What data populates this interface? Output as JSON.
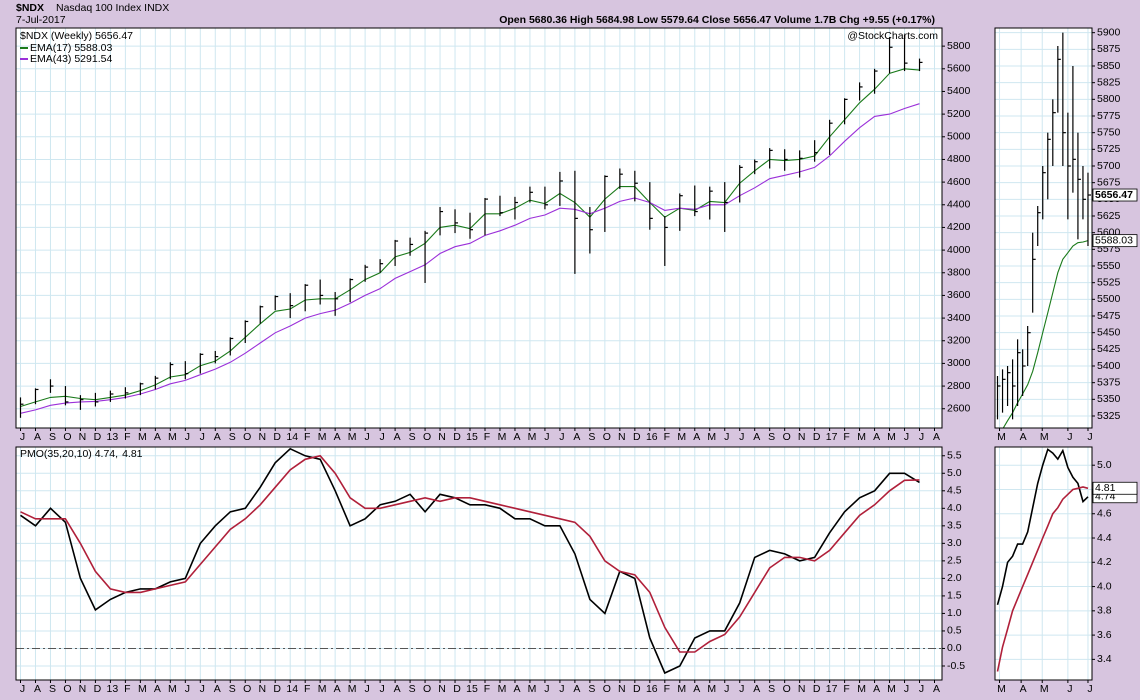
{
  "header": {
    "symbol": "$NDX",
    "name": "Nasdaq 100 Index INDX",
    "date": "7-Jul-2017",
    "quote": "Open 5680.36 High 5684.98 Low 5579.64 Close 5656.47 Volume 1.7B Chg +9.55 (+0.17%)",
    "credit": "@StockCharts.com"
  },
  "chart_data": [
    {
      "type": "ohlc",
      "legend": "$NDX (Weekly) 5656.47",
      "color": "#000000",
      "grid": true,
      "x": [
        0,
        1,
        2,
        3,
        4,
        5,
        6,
        7,
        8,
        9,
        10,
        11,
        12,
        13,
        14,
        15,
        16,
        17,
        18,
        19,
        20,
        21,
        22,
        23,
        24,
        25,
        26,
        27,
        28,
        29,
        30,
        31,
        32,
        33,
        34,
        35,
        36,
        37,
        38,
        39,
        40,
        41,
        42,
        43,
        44,
        45,
        46,
        47,
        48,
        49,
        50,
        51,
        52,
        53,
        54,
        55,
        56,
        57,
        58,
        59,
        60
      ],
      "high": [
        2700,
        2780,
        2860,
        2800,
        2720,
        2740,
        2760,
        2790,
        2830,
        2890,
        3010,
        3020,
        3090,
        3110,
        3230,
        3380,
        3510,
        3600,
        3620,
        3700,
        3740,
        3630,
        3750,
        3870,
        3920,
        4090,
        4110,
        4170,
        4380,
        4360,
        4330,
        4460,
        4480,
        4470,
        4560,
        4560,
        4690,
        4700,
        4380,
        4660,
        4720,
        4700,
        4600,
        4300,
        4500,
        4570,
        4560,
        4600,
        4750,
        4800,
        4900,
        4890,
        4880,
        4970,
        5150,
        5340,
        5480,
        5600,
        5880,
        5900,
        5690
      ],
      "low": [
        2520,
        2640,
        2740,
        2630,
        2590,
        2620,
        2660,
        2690,
        2720,
        2770,
        2860,
        2860,
        2910,
        3000,
        3070,
        3180,
        3350,
        3470,
        3400,
        3460,
        3520,
        3420,
        3540,
        3720,
        3800,
        3860,
        3950,
        3710,
        4130,
        4150,
        4100,
        4130,
        4300,
        4270,
        4420,
        4360,
        4390,
        3790,
        3970,
        4160,
        4540,
        4430,
        4180,
        3860,
        4170,
        4300,
        4270,
        4160,
        4420,
        4670,
        4720,
        4700,
        4640,
        4780,
        4840,
        5110,
        5320,
        5380,
        5560,
        5580,
        5580
      ],
      "close": [
        2640,
        2770,
        2800,
        2660,
        2680,
        2660,
        2730,
        2740,
        2820,
        2870,
        2990,
        2910,
        3080,
        3060,
        3220,
        3370,
        3500,
        3590,
        3510,
        3690,
        3600,
        3570,
        3740,
        3850,
        3880,
        4080,
        4050,
        4150,
        4340,
        4240,
        4180,
        4450,
        4330,
        4420,
        4510,
        4400,
        4610,
        4280,
        4180,
        4650,
        4670,
        4590,
        4280,
        4200,
        4480,
        4340,
        4520,
        4420,
        4730,
        4780,
        4880,
        4800,
        4810,
        4860,
        5120,
        5330,
        5440,
        5580,
        5790,
        5650,
        5656.47
      ],
      "series": [
        {
          "name": "EMA(17) 5588.03",
          "color": "#1a7a1a",
          "values": [
            2620,
            2660,
            2700,
            2710,
            2690,
            2680,
            2700,
            2720,
            2760,
            2810,
            2880,
            2900,
            2980,
            3020,
            3110,
            3230,
            3350,
            3460,
            3480,
            3560,
            3570,
            3570,
            3650,
            3740,
            3800,
            3940,
            3980,
            4060,
            4200,
            4220,
            4190,
            4320,
            4320,
            4370,
            4440,
            4410,
            4500,
            4420,
            4290,
            4450,
            4560,
            4560,
            4420,
            4290,
            4370,
            4350,
            4430,
            4420,
            4590,
            4700,
            4800,
            4790,
            4800,
            4830,
            5000,
            5150,
            5300,
            5420,
            5560,
            5600,
            5588.03
          ]
        },
        {
          "name": "EMA(43) 5291.54",
          "color": "#9b30d9",
          "values": [
            2560,
            2590,
            2630,
            2650,
            2660,
            2665,
            2680,
            2700,
            2730,
            2770,
            2820,
            2850,
            2900,
            2950,
            3010,
            3090,
            3180,
            3270,
            3330,
            3400,
            3440,
            3470,
            3530,
            3600,
            3660,
            3750,
            3810,
            3870,
            3970,
            4030,
            4060,
            4130,
            4170,
            4220,
            4280,
            4310,
            4370,
            4360,
            4320,
            4370,
            4430,
            4460,
            4420,
            4350,
            4370,
            4360,
            4400,
            4400,
            4480,
            4550,
            4630,
            4660,
            4690,
            4730,
            4830,
            4960,
            5080,
            5180,
            5200,
            5250,
            5291.54
          ]
        }
      ],
      "xlim": [
        -0.3,
        61.5
      ],
      "xticks": [
        {
          "value": 0,
          "label": "J"
        },
        {
          "value": 1,
          "label": "A"
        },
        {
          "value": 2,
          "label": "S"
        },
        {
          "value": 3,
          "label": "O"
        },
        {
          "value": 4,
          "label": "N"
        },
        {
          "value": 5,
          "label": "D"
        },
        {
          "value": 6,
          "label": "13"
        },
        {
          "value": 7,
          "label": "F"
        },
        {
          "value": 8,
          "label": "M"
        },
        {
          "value": 9,
          "label": "A"
        },
        {
          "value": 10,
          "label": "M"
        },
        {
          "value": 11,
          "label": "J"
        },
        {
          "value": 12,
          "label": "J"
        },
        {
          "value": 13,
          "label": "A"
        },
        {
          "value": 14,
          "label": "S"
        },
        {
          "value": 15,
          "label": "O"
        },
        {
          "value": 16,
          "label": "N"
        },
        {
          "value": 17,
          "label": "D"
        },
        {
          "value": 18,
          "label": "14"
        },
        {
          "value": 19,
          "label": "F"
        },
        {
          "value": 20,
          "label": "M"
        },
        {
          "value": 21,
          "label": "A"
        },
        {
          "value": 22,
          "label": "M"
        },
        {
          "value": 23,
          "label": "J"
        },
        {
          "value": 24,
          "label": "J"
        },
        {
          "value": 25,
          "label": "A"
        },
        {
          "value": 26,
          "label": "S"
        },
        {
          "value": 27,
          "label": "O"
        },
        {
          "value": 28,
          "label": "N"
        },
        {
          "value": 29,
          "label": "D"
        },
        {
          "value": 30,
          "label": "15"
        },
        {
          "value": 31,
          "label": "F"
        },
        {
          "value": 32,
          "label": "M"
        },
        {
          "value": 33,
          "label": "A"
        },
        {
          "value": 34,
          "label": "M"
        },
        {
          "value": 35,
          "label": "J"
        },
        {
          "value": 36,
          "label": "J"
        },
        {
          "value": 37,
          "label": "A"
        },
        {
          "value": 38,
          "label": "S"
        },
        {
          "value": 39,
          "label": "O"
        },
        {
          "value": 40,
          "label": "N"
        },
        {
          "value": 41,
          "label": "D"
        },
        {
          "value": 42,
          "label": "16"
        },
        {
          "value": 43,
          "label": "F"
        },
        {
          "value": 44,
          "label": "M"
        },
        {
          "value": 45,
          "label": "A"
        },
        {
          "value": 46,
          "label": "M"
        },
        {
          "value": 47,
          "label": "J"
        },
        {
          "value": 48,
          "label": "J"
        },
        {
          "value": 49,
          "label": "A"
        },
        {
          "value": 50,
          "label": "S"
        },
        {
          "value": 51,
          "label": "O"
        },
        {
          "value": 52,
          "label": "N"
        },
        {
          "value": 53,
          "label": "D"
        },
        {
          "value": 54,
          "label": "17"
        },
        {
          "value": 55,
          "label": "F"
        },
        {
          "value": 56,
          "label": "M"
        },
        {
          "value": 57,
          "label": "A"
        },
        {
          "value": 58,
          "label": "M"
        },
        {
          "value": 59,
          "label": "J"
        },
        {
          "value": 60,
          "label": "J"
        },
        {
          "value": 61,
          "label": "A"
        }
      ],
      "ylim": [
        2430,
        5960
      ],
      "yticks": [
        2600,
        2800,
        3000,
        3200,
        3400,
        3600,
        3800,
        4000,
        4200,
        4400,
        4600,
        4800,
        5000,
        5200,
        5400,
        5600,
        5800
      ]
    },
    {
      "type": "line",
      "grid": true,
      "zero_line": true,
      "series": [
        {
          "name": "PMO(35,20,10) 4.74,",
          "color": "#000000",
          "values": [
            3.8,
            3.5,
            4.0,
            3.6,
            2.0,
            1.1,
            1.4,
            1.6,
            1.7,
            1.7,
            1.9,
            2.0,
            3.0,
            3.5,
            3.9,
            4.0,
            4.6,
            5.3,
            5.7,
            5.5,
            5.4,
            4.5,
            3.5,
            3.7,
            4.1,
            4.2,
            4.4,
            3.9,
            4.4,
            4.3,
            4.1,
            4.1,
            4.0,
            3.7,
            3.7,
            3.5,
            3.5,
            2.7,
            1.4,
            1.0,
            2.2,
            2.0,
            0.3,
            -0.7,
            -0.5,
            0.3,
            0.5,
            0.5,
            1.3,
            2.6,
            2.8,
            2.7,
            2.5,
            2.6,
            3.3,
            3.9,
            4.3,
            4.5,
            5.0,
            5.0,
            4.74
          ]
        },
        {
          "name": "4.81",
          "color": "#b0203a",
          "values": [
            3.9,
            3.7,
            3.7,
            3.7,
            3.0,
            2.2,
            1.7,
            1.6,
            1.6,
            1.7,
            1.8,
            1.9,
            2.4,
            2.9,
            3.4,
            3.7,
            4.1,
            4.6,
            5.1,
            5.4,
            5.5,
            5.0,
            4.3,
            4.0,
            4.0,
            4.1,
            4.2,
            4.3,
            4.2,
            4.3,
            4.3,
            4.2,
            4.1,
            4.0,
            3.9,
            3.8,
            3.7,
            3.6,
            3.2,
            2.5,
            2.2,
            2.1,
            1.6,
            0.6,
            -0.1,
            -0.1,
            0.2,
            0.4,
            0.9,
            1.6,
            2.3,
            2.6,
            2.6,
            2.5,
            2.8,
            3.3,
            3.8,
            4.1,
            4.5,
            4.8,
            4.81
          ]
        }
      ],
      "ylim": [
        -0.9,
        5.75
      ],
      "yticks": [
        5.5,
        {
          "value": 5,
          "label": "5.0"
        },
        4.5,
        {
          "value": 4,
          "label": "4.0"
        },
        3.5,
        {
          "value": 3,
          "label": "3.0"
        },
        2.5,
        {
          "value": 2,
          "label": "2.0"
        },
        1.5,
        {
          "value": 1,
          "label": "1.0"
        },
        0.5,
        {
          "value": 0,
          "label": "0.0"
        },
        -0.5
      ]
    },
    {
      "type": "ohlc",
      "color": "#000000",
      "grid": true,
      "x": [
        0,
        1,
        2,
        3,
        4,
        5,
        6,
        7,
        8,
        9,
        10,
        11,
        12,
        13,
        14,
        15,
        16,
        17,
        18
      ],
      "high": [
        5385,
        5395,
        5400,
        5410,
        5440,
        5425,
        5460,
        5600,
        5640,
        5700,
        5750,
        5800,
        5880,
        5900,
        5780,
        5850,
        5750,
        5700,
        5690
      ],
      "low": [
        5320,
        5330,
        5340,
        5320,
        5340,
        5355,
        5400,
        5480,
        5580,
        5620,
        5650,
        5700,
        5780,
        5700,
        5620,
        5660,
        5590,
        5620,
        5580
      ],
      "close": [
        5370,
        5380,
        5390,
        5370,
        5420,
        5400,
        5450,
        5560,
        5630,
        5690,
        5740,
        5780,
        5860,
        5750,
        5700,
        5710,
        5680,
        5650,
        5656.47
      ],
      "series": [
        {
          "color": "#1a7a1a",
          "values": [
            5290,
            5305,
            5318,
            5330,
            5345,
            5358,
            5372,
            5392,
            5420,
            5450,
            5480,
            5510,
            5540,
            5560,
            5570,
            5580,
            5585,
            5586,
            5588.03
          ]
        }
      ],
      "xlim": [
        -0.5,
        18.8
      ],
      "xticks": [
        {
          "value": 0.4,
          "label": "M"
        },
        {
          "value": 4.7,
          "label": "A"
        },
        {
          "value": 8.9,
          "label": "M"
        },
        {
          "value": 14,
          "label": "J"
        },
        {
          "value": 18,
          "label": "J"
        }
      ],
      "ylim": [
        5307,
        5907
      ],
      "yticks": [
        5325,
        5350,
        5375,
        5400,
        5425,
        5450,
        5475,
        5500,
        5525,
        5550,
        5575,
        5600,
        5625,
        5650,
        5675,
        5700,
        5725,
        5750,
        5775,
        5800,
        5825,
        5850,
        5875,
        5900
      ]
    },
    {
      "type": "line",
      "grid": true,
      "series": [
        {
          "color": "#000000",
          "values": [
            3.85,
            4.0,
            4.2,
            4.25,
            4.35,
            4.35,
            4.45,
            4.65,
            4.85,
            5.0,
            5.13,
            5.1,
            5.05,
            5.12,
            4.98,
            4.9,
            4.85,
            4.7,
            4.74
          ]
        },
        {
          "color": "#b0203a",
          "values": [
            3.3,
            3.5,
            3.65,
            3.8,
            3.9,
            4.0,
            4.1,
            4.2,
            4.3,
            4.4,
            4.5,
            4.6,
            4.65,
            4.72,
            4.76,
            4.8,
            4.81,
            4.82,
            4.81
          ]
        }
      ],
      "ylim": [
        3.23,
        5.15
      ],
      "yticks": [
        {
          "value": 5,
          "label": "5.0"
        },
        4.8,
        4.6,
        4.4,
        4.2,
        {
          "value": 4,
          "label": "4.0"
        },
        3.8,
        3.6,
        3.4
      ]
    }
  ]
}
